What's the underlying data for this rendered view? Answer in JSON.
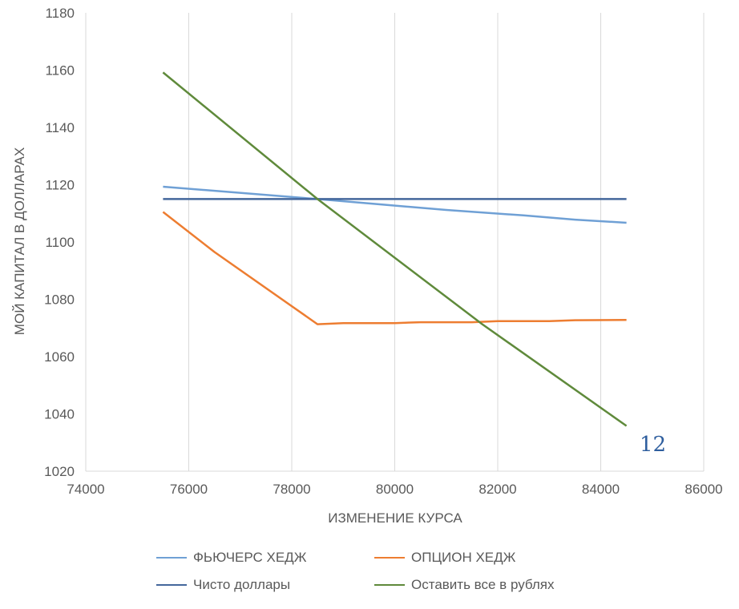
{
  "chart_data": {
    "type": "line",
    "title": "",
    "xlabel": "ИЗМЕНЕНИЕ КУРСА",
    "ylabel": "МОЙ КАПИТАЛ В ДОЛЛАРАХ",
    "xlim": [
      74000,
      86000
    ],
    "ylim": [
      1020,
      1180
    ],
    "xticks": [
      74000,
      76000,
      78000,
      80000,
      82000,
      84000,
      86000
    ],
    "yticks": [
      1020,
      1040,
      1060,
      1080,
      1100,
      1120,
      1140,
      1160,
      1180
    ],
    "grid": "vertical",
    "legend_position": "bottom",
    "series": [
      {
        "name": "ФЬЮЧЕРС ХЕДЖ",
        "color": "#6fa0d5",
        "points": [
          [
            75500,
            1119.3
          ],
          [
            78500,
            1115.0
          ],
          [
            81000,
            1111.2
          ],
          [
            82500,
            1109.3
          ],
          [
            83500,
            1107.8
          ],
          [
            84500,
            1106.7
          ]
        ]
      },
      {
        "name": "ОПЦИОН ХЕДЖ",
        "color": "#ed7d31",
        "points": [
          [
            75500,
            1110.5
          ],
          [
            76500,
            1096.5
          ],
          [
            78500,
            1071.3
          ],
          [
            79000,
            1071.7
          ],
          [
            80000,
            1071.7
          ],
          [
            80500,
            1072.0
          ],
          [
            81500,
            1072.0
          ],
          [
            82000,
            1072.4
          ],
          [
            83000,
            1072.4
          ],
          [
            83500,
            1072.7
          ],
          [
            84500,
            1072.8
          ]
        ]
      },
      {
        "name": "Чисто доллары",
        "color": "#44679c",
        "points": [
          [
            75500,
            1115.0
          ],
          [
            84500,
            1115.0
          ]
        ]
      },
      {
        "name": "Оставить все в рублях",
        "color": "#5f8a3b",
        "points": [
          [
            75500,
            1159.2
          ],
          [
            78500,
            1115.0
          ],
          [
            81700,
            1071.3
          ],
          [
            84500,
            1035.8
          ]
        ]
      }
    ]
  },
  "page_number": "12"
}
